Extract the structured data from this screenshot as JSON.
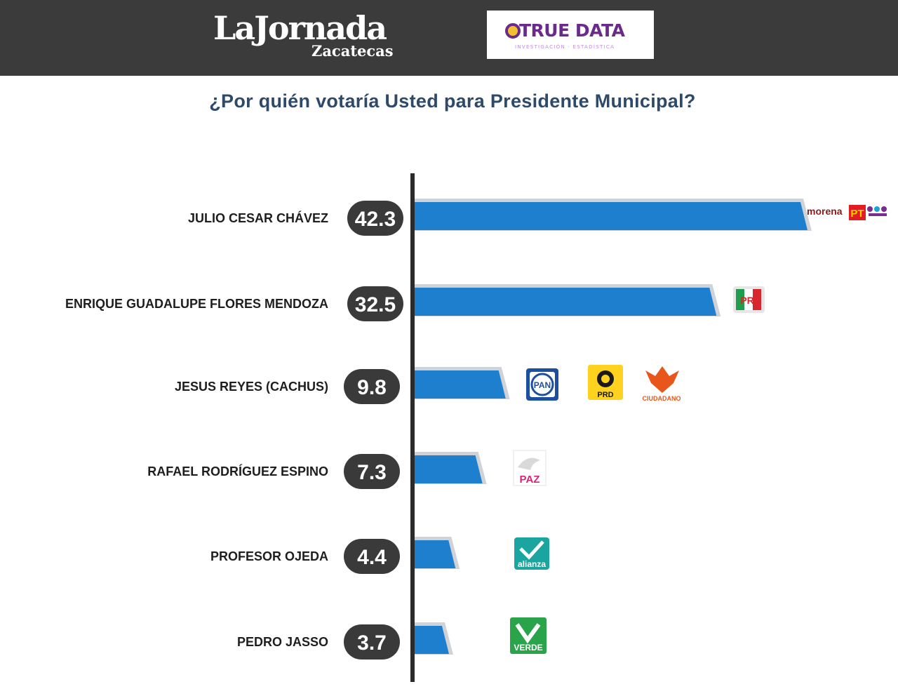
{
  "header": {
    "brand_name": "LaJornada",
    "brand_city": "Zacatecas",
    "partner_name": "TRUE DATA",
    "partner_tagline": "INVESTIGACIÓN · ESTADÍSTICA"
  },
  "colors": {
    "header_bg": "#3b3b3b",
    "bar": "#1e7fcf",
    "bar_shadow": "#cfd3d8",
    "pill": "#3a3a3a",
    "axis": "#2b2b2b",
    "title": "#2e4a6b"
  },
  "chart_data": {
    "type": "bar",
    "orientation": "horizontal",
    "title": "¿Por quién votaría Usted para Presidente Municipal?",
    "categories": [
      "JULIO CESAR CHÁVEZ",
      "ENRIQUE GUADALUPE FLORES MENDOZA",
      "JESUS REYES (CACHUS)",
      "RAFAEL RODRÍGUEZ ESPINO",
      "PROFESOR OJEDA",
      "PEDRO JASSO"
    ],
    "values": [
      42.3,
      32.5,
      9.8,
      7.3,
      4.4,
      3.7
    ],
    "value_labels": [
      "42.3",
      "32.5",
      "9.8",
      "7.3",
      "4.4",
      "3.7"
    ],
    "parties": [
      [
        {
          "icon": "morena-pt-pes-logo",
          "labels": [
            "morena",
            "PT"
          ]
        }
      ],
      [
        {
          "icon": "pri-logo",
          "labels": [
            "PRI"
          ]
        }
      ],
      [
        {
          "icon": "pan-logo",
          "labels": [
            "PAN"
          ]
        },
        {
          "icon": "prd-logo",
          "labels": [
            "PRD"
          ]
        },
        {
          "icon": "movimiento-ciudadano-logo",
          "labels": [
            "CIUDADANO"
          ]
        }
      ],
      [
        {
          "icon": "paz-logo",
          "labels": [
            "PAZ"
          ]
        }
      ],
      [
        {
          "icon": "nueva-alianza-logo",
          "labels": [
            "alianza"
          ]
        }
      ],
      [
        {
          "icon": "verde-logo",
          "labels": [
            "VERDE"
          ]
        }
      ]
    ],
    "xlim": [
      0,
      42.3
    ],
    "grid": false,
    "legend": "none"
  }
}
